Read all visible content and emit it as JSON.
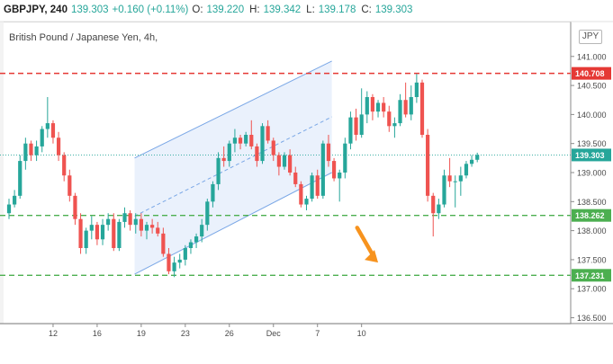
{
  "header": {
    "symbol": "GBPJPY, 240",
    "last": "139.303",
    "change": "+0.160 (+0.11%)",
    "o_label": "O:",
    "o_value": "139.220",
    "h_label": "H:",
    "h_value": "139.342",
    "l_label": "L:",
    "l_value": "139.178",
    "c_label": "C:",
    "c_value": "139.303"
  },
  "chart_title": "British Pound / Japanese Yen, 4h,",
  "currency_button": "JPY",
  "colors": {
    "up": "#26a69a",
    "down": "#ef5350",
    "resistance": "#e53935",
    "support": "#4caf50",
    "channel": "#7aa7e6",
    "channel_fill": "#dfe9fb",
    "arrow": "#f7931e",
    "last_price_line": "#26a69a"
  },
  "chart_data": {
    "type": "candlestick",
    "ylim": [
      136.4,
      141.6
    ],
    "y_ticks": [
      "141.000",
      "140.500",
      "140.000",
      "139.500",
      "139.000",
      "138.500",
      "138.000",
      "137.500",
      "137.000",
      "136.500"
    ],
    "x_ticks": [
      {
        "label": "12",
        "x": 8
      },
      {
        "label": "16",
        "x": 16
      },
      {
        "label": "19",
        "x": 24
      },
      {
        "label": "23",
        "x": 32
      },
      {
        "label": "26",
        "x": 40
      },
      {
        "label": "Dec",
        "x": 48
      },
      {
        "label": "7",
        "x": 56
      },
      {
        "label": "10",
        "x": 64
      }
    ],
    "levels": [
      {
        "name": "resistance",
        "price": 140.708,
        "label": "140.708",
        "style": "dashed",
        "color": "#e53935"
      },
      {
        "name": "support-1",
        "price": 138.262,
        "label": "138.262",
        "style": "dashed",
        "color": "#4caf50"
      },
      {
        "name": "support-2",
        "price": 137.231,
        "label": "137.231",
        "style": "dashed",
        "color": "#4caf50"
      },
      {
        "name": "last-price",
        "price": 139.303,
        "label": "139.303",
        "style": "dotted",
        "color": "#26a69a"
      }
    ],
    "channel": {
      "lower": [
        [
          22.8,
          137.25
        ],
        [
          58.6,
          139.0
        ]
      ],
      "upper": [
        [
          22.8,
          139.25
        ],
        [
          58.6,
          140.92
        ]
      ],
      "mid": [
        [
          22.8,
          138.25
        ],
        [
          58.6,
          139.96
        ]
      ]
    },
    "forecast_arrow": {
      "from": [
        63.2,
        138.05
      ],
      "to": [
        67.0,
        137.45
      ]
    },
    "candles": [
      [
        138.3,
        138.55,
        138.2,
        138.45
      ],
      [
        138.45,
        138.7,
        138.4,
        138.6
      ],
      [
        138.6,
        139.3,
        138.55,
        139.2
      ],
      [
        139.2,
        139.6,
        139.05,
        139.5
      ],
      [
        139.5,
        139.55,
        139.2,
        139.3
      ],
      [
        139.3,
        139.55,
        139.2,
        139.45
      ],
      [
        139.45,
        139.8,
        139.35,
        139.75
      ],
      [
        139.75,
        140.3,
        139.6,
        139.85
      ],
      [
        139.85,
        139.9,
        139.5,
        139.6
      ],
      [
        139.6,
        139.7,
        139.2,
        139.3
      ],
      [
        139.3,
        139.35,
        138.85,
        138.95
      ],
      [
        138.95,
        139.05,
        138.5,
        138.6
      ],
      [
        138.6,
        138.65,
        138.1,
        138.2
      ],
      [
        138.2,
        138.3,
        137.6,
        137.7
      ],
      [
        137.7,
        138.05,
        137.6,
        138.0
      ],
      [
        138.0,
        138.25,
        137.85,
        138.1
      ],
      [
        138.1,
        138.15,
        137.75,
        137.85
      ],
      [
        137.85,
        138.2,
        137.75,
        138.1
      ],
      [
        138.1,
        138.3,
        138.0,
        138.2
      ],
      [
        138.2,
        138.3,
        137.65,
        137.7
      ],
      [
        137.7,
        138.2,
        137.65,
        138.15
      ],
      [
        138.15,
        138.4,
        138.05,
        138.3
      ],
      [
        138.3,
        138.35,
        138.0,
        138.1
      ],
      [
        138.1,
        138.3,
        137.95,
        138.2
      ],
      [
        138.2,
        138.3,
        137.9,
        138.0
      ],
      [
        138.0,
        138.15,
        137.85,
        138.1
      ],
      [
        138.1,
        138.2,
        137.95,
        138.05
      ],
      [
        138.05,
        138.15,
        137.9,
        137.95
      ],
      [
        137.95,
        138.05,
        137.55,
        137.6
      ],
      [
        137.6,
        137.7,
        137.25,
        137.3
      ],
      [
        137.3,
        137.55,
        137.2,
        137.45
      ],
      [
        137.45,
        137.6,
        137.35,
        137.5
      ],
      [
        137.5,
        137.75,
        137.4,
        137.7
      ],
      [
        137.7,
        137.85,
        137.6,
        137.8
      ],
      [
        137.8,
        137.95,
        137.7,
        137.9
      ],
      [
        137.9,
        138.2,
        137.8,
        138.1
      ],
      [
        138.1,
        138.55,
        138.0,
        138.5
      ],
      [
        138.5,
        138.85,
        138.4,
        138.8
      ],
      [
        138.8,
        139.35,
        138.7,
        139.25
      ],
      [
        139.25,
        139.45,
        139.1,
        139.2
      ],
      [
        139.2,
        139.55,
        139.1,
        139.5
      ],
      [
        139.5,
        139.75,
        139.35,
        139.6
      ],
      [
        139.6,
        139.65,
        139.4,
        139.5
      ],
      [
        139.5,
        139.7,
        139.45,
        139.65
      ],
      [
        139.65,
        139.9,
        139.4,
        139.45
      ],
      [
        139.45,
        139.5,
        139.1,
        139.2
      ],
      [
        139.2,
        139.85,
        139.15,
        139.8
      ],
      [
        139.8,
        139.9,
        139.5,
        139.55
      ],
      [
        139.55,
        139.6,
        139.2,
        139.3
      ],
      [
        139.3,
        139.35,
        138.95,
        139.1
      ],
      [
        139.1,
        139.35,
        139.05,
        139.3
      ],
      [
        139.3,
        139.4,
        138.95,
        139.0
      ],
      [
        139.0,
        139.1,
        138.75,
        138.8
      ],
      [
        138.8,
        138.85,
        138.4,
        138.45
      ],
      [
        138.45,
        138.6,
        138.35,
        138.55
      ],
      [
        138.55,
        139.0,
        138.5,
        138.95
      ],
      [
        138.95,
        139.05,
        138.55,
        138.6
      ],
      [
        138.6,
        139.55,
        138.55,
        139.5
      ],
      [
        139.5,
        139.65,
        139.1,
        139.2
      ],
      [
        139.2,
        139.25,
        138.85,
        138.9
      ],
      [
        138.9,
        139.05,
        138.5,
        139.0
      ],
      [
        139.0,
        139.6,
        138.9,
        139.5
      ],
      [
        139.5,
        140.05,
        139.4,
        139.95
      ],
      [
        139.95,
        140.1,
        139.55,
        139.65
      ],
      [
        139.65,
        140.45,
        139.6,
        140.0
      ],
      [
        140.0,
        140.4,
        139.85,
        140.3
      ],
      [
        140.3,
        140.35,
        139.9,
        140.05
      ],
      [
        140.05,
        140.25,
        139.95,
        140.2
      ],
      [
        140.2,
        140.3,
        139.95,
        140.05
      ],
      [
        140.05,
        140.15,
        139.7,
        139.8
      ],
      [
        139.8,
        139.95,
        139.6,
        139.85
      ],
      [
        139.85,
        140.35,
        139.8,
        140.25
      ],
      [
        140.25,
        140.55,
        139.95,
        140.0
      ],
      [
        140.0,
        140.5,
        139.9,
        140.3
      ],
      [
        140.3,
        140.7,
        140.2,
        140.55
      ],
      [
        140.55,
        140.6,
        139.6,
        139.65
      ],
      [
        139.65,
        139.75,
        138.5,
        138.6
      ],
      [
        138.6,
        138.65,
        137.9,
        138.3
      ],
      [
        138.3,
        138.55,
        138.2,
        138.45
      ],
      [
        138.45,
        139.05,
        138.4,
        138.95
      ],
      [
        138.95,
        139.25,
        138.75,
        138.85
      ],
      [
        138.85,
        138.95,
        138.4,
        138.85
      ],
      [
        138.85,
        139.1,
        138.6,
        138.95
      ],
      [
        138.95,
        139.2,
        138.9,
        139.15
      ],
      [
        139.15,
        139.3,
        139.1,
        139.22
      ],
      [
        139.22,
        139.342,
        139.178,
        139.303
      ]
    ]
  }
}
